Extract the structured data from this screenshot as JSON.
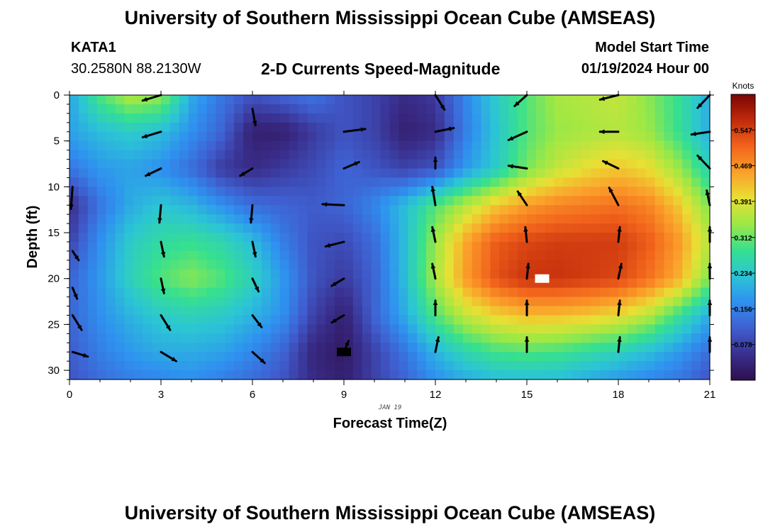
{
  "header": {
    "title": "University of Southern Mississippi Ocean Cube (AMSEAS)",
    "station": "KATA1",
    "coords": "30.2580N  88.2130W",
    "subtitle": "2-D Currents Speed-Magnitude",
    "start_label": "Model Start Time",
    "start_time": "01/19/2024 Hour 00"
  },
  "footer": {
    "title": "University of Southern Mississippi Ocean Cube (AMSEAS)"
  },
  "chart_data": {
    "type": "heatmap",
    "xlabel": "Forecast Time(Z)",
    "ylabel": "Depth (ft)",
    "date_label": "JAN 19",
    "x_ticks": [
      "0",
      "3",
      "6",
      "9",
      "12",
      "15",
      "18",
      "21"
    ],
    "y_ticks": [
      "0",
      "5",
      "10",
      "15",
      "20",
      "25",
      "30"
    ],
    "xlim": [
      0,
      21
    ],
    "ylim": [
      0,
      31
    ],
    "colorbar": {
      "title": "Knots",
      "ticks": [
        "0.078",
        "0.156",
        "0.234",
        "0.312",
        "0.391",
        "0.469",
        "0.547"
      ],
      "range": [
        0.0,
        0.625
      ],
      "colors": [
        "#2d0f4e",
        "#3a2f8e",
        "#3f5fd0",
        "#2f90f0",
        "#2bc4d6",
        "#36e08f",
        "#9ce845",
        "#e8e034",
        "#fba02a",
        "#f2641c",
        "#c22a0b",
        "#7a0403"
      ]
    },
    "speed_field": {
      "x_hours": [
        0,
        1,
        2,
        3,
        4,
        5,
        6,
        7,
        8,
        9,
        10,
        11,
        12,
        13,
        14,
        15,
        16,
        17,
        18,
        19,
        20,
        21
      ],
      "depths_ft": [
        0,
        4,
        8,
        12,
        16,
        20,
        24,
        28,
        31
      ],
      "values_knots": [
        [
          0.19,
          0.3,
          0.36,
          0.34,
          0.2,
          0.14,
          0.1,
          0.12,
          0.14,
          0.1,
          0.08,
          0.05,
          0.07,
          0.16,
          0.24,
          0.3,
          0.35,
          0.36,
          0.37,
          0.33,
          0.28,
          0.2
        ],
        [
          0.19,
          0.22,
          0.24,
          0.22,
          0.17,
          0.12,
          0.03,
          0.03,
          0.07,
          0.1,
          0.08,
          0.03,
          0.05,
          0.15,
          0.23,
          0.3,
          0.34,
          0.35,
          0.36,
          0.34,
          0.28,
          0.2
        ],
        [
          0.14,
          0.18,
          0.19,
          0.17,
          0.13,
          0.07,
          0.05,
          0.07,
          0.09,
          0.12,
          0.1,
          0.08,
          0.1,
          0.18,
          0.24,
          0.32,
          0.37,
          0.4,
          0.42,
          0.4,
          0.34,
          0.25
        ],
        [
          0.05,
          0.14,
          0.2,
          0.23,
          0.21,
          0.17,
          0.13,
          0.12,
          0.11,
          0.12,
          0.16,
          0.22,
          0.3,
          0.36,
          0.42,
          0.46,
          0.48,
          0.49,
          0.5,
          0.48,
          0.42,
          0.32
        ],
        [
          0.08,
          0.17,
          0.24,
          0.27,
          0.28,
          0.26,
          0.22,
          0.15,
          0.1,
          0.09,
          0.13,
          0.22,
          0.34,
          0.45,
          0.52,
          0.54,
          0.55,
          0.55,
          0.55,
          0.52,
          0.46,
          0.36
        ],
        [
          0.12,
          0.18,
          0.25,
          0.3,
          0.33,
          0.3,
          0.25,
          0.18,
          0.1,
          0.07,
          0.12,
          0.22,
          0.35,
          0.46,
          0.53,
          0.56,
          0.56,
          0.55,
          0.54,
          0.5,
          0.44,
          0.32
        ],
        [
          0.12,
          0.17,
          0.21,
          0.24,
          0.25,
          0.24,
          0.21,
          0.17,
          0.08,
          0.03,
          0.12,
          0.2,
          0.3,
          0.37,
          0.41,
          0.43,
          0.43,
          0.42,
          0.4,
          0.36,
          0.28,
          0.2
        ],
        [
          0.11,
          0.15,
          0.18,
          0.2,
          0.2,
          0.19,
          0.16,
          0.12,
          0.04,
          0.02,
          0.08,
          0.14,
          0.21,
          0.26,
          0.29,
          0.3,
          0.29,
          0.27,
          0.25,
          0.22,
          0.18,
          0.13
        ],
        [
          0.1,
          0.13,
          0.15,
          0.16,
          0.17,
          0.15,
          0.13,
          0.1,
          0.05,
          0.03,
          0.08,
          0.12,
          0.17,
          0.2,
          0.22,
          0.22,
          0.22,
          0.2,
          0.18,
          0.16,
          0.14,
          0.1
        ]
      ]
    },
    "vector_arrows": [
      [
        0.1,
        10,
        -0.05,
        2.4
      ],
      [
        0.1,
        17,
        0.2,
        1.0
      ],
      [
        0.1,
        21,
        0.15,
        1.2
      ],
      [
        0.1,
        24,
        0.3,
        1.6
      ],
      [
        0.1,
        28,
        0.5,
        0.5
      ],
      [
        3.0,
        0,
        -0.6,
        0.6
      ],
      [
        3.0,
        4,
        -0.6,
        0.6
      ],
      [
        3.0,
        8,
        -0.5,
        0.8
      ],
      [
        3.0,
        12,
        -0.05,
        1.9
      ],
      [
        3.0,
        16,
        0.1,
        1.6
      ],
      [
        3.0,
        20,
        0.1,
        1.6
      ],
      [
        3.0,
        24,
        0.3,
        1.6
      ],
      [
        3.0,
        28,
        0.5,
        1.0
      ],
      [
        6.0,
        1.5,
        0.1,
        1.8
      ],
      [
        6.0,
        8,
        -0.4,
        0.8
      ],
      [
        6.0,
        12,
        -0.05,
        1.9
      ],
      [
        6.0,
        16,
        0.1,
        1.6
      ],
      [
        6.0,
        20,
        0.2,
        1.4
      ],
      [
        6.0,
        24,
        0.3,
        1.3
      ],
      [
        6.0,
        28,
        0.4,
        1.2
      ],
      [
        9.0,
        4,
        0.7,
        -0.3
      ],
      [
        9.0,
        8,
        0.5,
        -0.7
      ],
      [
        9.0,
        12,
        -0.7,
        -0.1
      ],
      [
        9.0,
        16,
        -0.6,
        0.5
      ],
      [
        9.0,
        20,
        -0.4,
        0.8
      ],
      [
        9.0,
        24,
        -0.4,
        0.8
      ],
      [
        9.0,
        28,
        0.15,
        -1.2
      ],
      [
        12.0,
        0,
        0.3,
        1.6
      ],
      [
        12.0,
        4,
        0.6,
        -0.4
      ],
      [
        12.0,
        8,
        0.0,
        -1.2
      ],
      [
        12.0,
        12,
        -0.1,
        -2.0
      ],
      [
        12.0,
        16,
        -0.1,
        -1.6
      ],
      [
        12.0,
        20,
        -0.1,
        -1.6
      ],
      [
        12.0,
        24,
        0.0,
        -1.6
      ],
      [
        12.0,
        28,
        0.1,
        -1.6
      ],
      [
        15.0,
        0,
        -0.4,
        1.2
      ],
      [
        15.0,
        4,
        -0.6,
        0.9
      ],
      [
        15.0,
        8,
        -0.6,
        -0.3
      ],
      [
        15.0,
        12,
        -0.3,
        -1.5
      ],
      [
        15.0,
        16,
        -0.05,
        -1.6
      ],
      [
        15.0,
        20,
        0.05,
        -1.6
      ],
      [
        15.0,
        24,
        0.0,
        -1.6
      ],
      [
        15.0,
        28,
        0.0,
        -1.6
      ],
      [
        18.0,
        0,
        -0.6,
        0.5
      ],
      [
        18.0,
        4,
        -0.6,
        0.0
      ],
      [
        18.0,
        8,
        -0.5,
        -0.8
      ],
      [
        18.0,
        12,
        -0.3,
        -1.9
      ],
      [
        18.0,
        16,
        0.05,
        -1.6
      ],
      [
        18.0,
        20,
        0.1,
        -1.6
      ],
      [
        18.0,
        24,
        0.05,
        -1.6
      ],
      [
        18.0,
        28,
        0.05,
        -1.6
      ],
      [
        21.0,
        0,
        -0.4,
        1.4
      ],
      [
        21.0,
        4,
        -0.6,
        0.3
      ],
      [
        21.0,
        8,
        -0.4,
        -1.4
      ],
      [
        21.0,
        12,
        -0.1,
        -1.6
      ],
      [
        21.0,
        16,
        0.0,
        -1.6
      ],
      [
        21.0,
        20,
        0.0,
        -1.6
      ],
      [
        21.0,
        24,
        0.0,
        -1.6
      ],
      [
        21.0,
        28,
        0.0,
        -1.6
      ]
    ],
    "markers": [
      {
        "name": "min-speed-marker",
        "hour": 9.0,
        "depth_ft": 28,
        "color": "#000000"
      },
      {
        "name": "max-speed-marker",
        "hour": 15.5,
        "depth_ft": 20,
        "color": "#ffffff"
      }
    ]
  }
}
